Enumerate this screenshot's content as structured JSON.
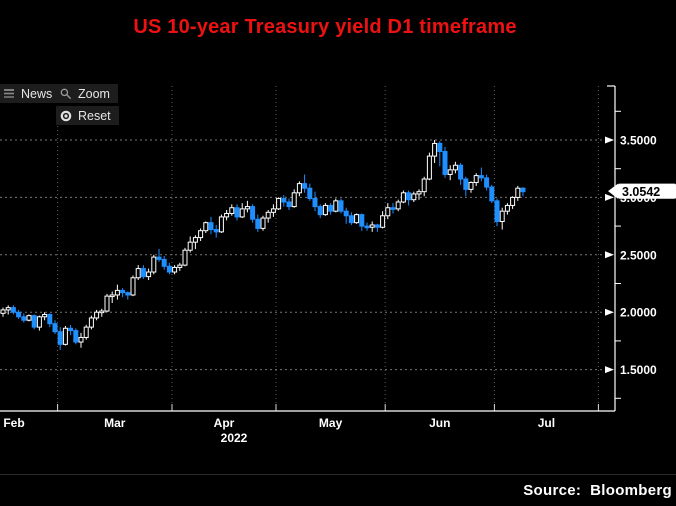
{
  "title": {
    "text": "US 10-year Treasury yield D1 timeframe",
    "color": "#ee1111"
  },
  "toolbar": {
    "buttons": [
      {
        "label": "News",
        "icon": "news-list-icon"
      },
      {
        "label": "Zoom",
        "icon": "magnifier-icon"
      },
      {
        "label": "Reset",
        "icon": "reset-target-icon"
      }
    ]
  },
  "source_label": "Source:  Bloomberg",
  "chart_data": {
    "type": "candlestick",
    "title": "US 10-year Treasury yield D1 timeframe",
    "instrument": "US 10-year Treasury yield",
    "timeframe": "D1",
    "x_axis": {
      "months": [
        "Feb",
        "Mar",
        "Apr",
        "May",
        "Jun",
        "Jul"
      ],
      "year": "2022"
    },
    "y_axis": {
      "major_ticks": [
        3.5,
        3.0,
        2.5,
        2.0,
        1.5
      ],
      "tick_labels": [
        "3.5000",
        "3.0000",
        "2.5000",
        "2.0000",
        "1.5000"
      ],
      "minor_ticks": [
        3.75,
        3.25,
        2.75,
        2.25,
        1.75,
        1.25
      ],
      "range": [
        1.14,
        3.97
      ],
      "grid": "dotted"
    },
    "last_price": 3.0542,
    "last_price_label": "3.0542",
    "legend_position": "none",
    "colors": {
      "up": "#ffffff",
      "down": "#1e8fff",
      "grid": "#787878",
      "vgrid": "#5e5e5e",
      "axis": "#ffffff",
      "background": "#000000",
      "tag_bg": "#ffffff",
      "tag_text": "#000000"
    },
    "month_start_indices": [
      0,
      11,
      33,
      53,
      74,
      95
    ],
    "candles": [
      [
        1.99,
        2.04,
        1.96,
        2.02
      ],
      [
        2.02,
        2.06,
        1.98,
        2.04
      ],
      [
        2.04,
        2.06,
        1.98,
        2.0
      ],
      [
        2.0,
        2.02,
        1.94,
        1.96
      ],
      [
        1.96,
        1.99,
        1.91,
        1.93
      ],
      [
        1.93,
        1.98,
        1.92,
        1.97
      ],
      [
        1.97,
        1.98,
        1.85,
        1.87
      ],
      [
        1.87,
        1.97,
        1.84,
        1.96
      ],
      [
        1.96,
        2.0,
        1.93,
        1.98
      ],
      [
        1.98,
        1.99,
        1.87,
        1.9
      ],
      [
        1.9,
        1.93,
        1.81,
        1.83
      ],
      [
        1.83,
        1.87,
        1.67,
        1.72
      ],
      [
        1.72,
        1.88,
        1.71,
        1.86
      ],
      [
        1.86,
        1.89,
        1.8,
        1.84
      ],
      [
        1.84,
        1.86,
        1.72,
        1.74
      ],
      [
        1.74,
        1.82,
        1.69,
        1.78
      ],
      [
        1.78,
        1.89,
        1.76,
        1.87
      ],
      [
        1.87,
        1.97,
        1.85,
        1.95
      ],
      [
        1.95,
        2.02,
        1.93,
        2.0
      ],
      [
        2.0,
        2.03,
        1.96,
        2.01
      ],
      [
        2.01,
        2.16,
        2.0,
        2.14
      ],
      [
        2.14,
        2.18,
        2.08,
        2.15
      ],
      [
        2.15,
        2.24,
        2.11,
        2.19
      ],
      [
        2.19,
        2.21,
        2.13,
        2.17
      ],
      [
        2.17,
        2.18,
        2.11,
        2.15
      ],
      [
        2.15,
        2.32,
        2.14,
        2.3
      ],
      [
        2.3,
        2.41,
        2.28,
        2.38
      ],
      [
        2.38,
        2.41,
        2.29,
        2.31
      ],
      [
        2.31,
        2.38,
        2.28,
        2.35
      ],
      [
        2.35,
        2.5,
        2.33,
        2.48
      ],
      [
        2.48,
        2.55,
        2.44,
        2.46
      ],
      [
        2.46,
        2.49,
        2.37,
        2.4
      ],
      [
        2.4,
        2.43,
        2.33,
        2.35
      ],
      [
        2.35,
        2.41,
        2.33,
        2.39
      ],
      [
        2.39,
        2.43,
        2.36,
        2.41
      ],
      [
        2.41,
        2.56,
        2.4,
        2.54
      ],
      [
        2.54,
        2.66,
        2.52,
        2.61
      ],
      [
        2.61,
        2.67,
        2.55,
        2.65
      ],
      [
        2.65,
        2.73,
        2.62,
        2.71
      ],
      [
        2.71,
        2.79,
        2.69,
        2.78
      ],
      [
        2.78,
        2.83,
        2.68,
        2.72
      ],
      [
        2.72,
        2.76,
        2.65,
        2.7
      ],
      [
        2.7,
        2.85,
        2.69,
        2.83
      ],
      [
        2.83,
        2.89,
        2.8,
        2.86
      ],
      [
        2.86,
        2.94,
        2.84,
        2.91
      ],
      [
        2.91,
        2.94,
        2.8,
        2.83
      ],
      [
        2.83,
        2.95,
        2.82,
        2.9
      ],
      [
        2.9,
        2.97,
        2.87,
        2.92
      ],
      [
        2.92,
        2.94,
        2.78,
        2.81
      ],
      [
        2.81,
        2.85,
        2.7,
        2.73
      ],
      [
        2.73,
        2.84,
        2.71,
        2.82
      ],
      [
        2.82,
        2.89,
        2.78,
        2.87
      ],
      [
        2.87,
        2.94,
        2.83,
        2.9
      ],
      [
        2.9,
        3.0,
        2.89,
        2.99
      ],
      [
        2.99,
        3.02,
        2.92,
        2.96
      ],
      [
        2.96,
        2.99,
        2.89,
        2.92
      ],
      [
        2.92,
        3.07,
        2.91,
        3.04
      ],
      [
        3.04,
        3.14,
        3.01,
        3.12
      ],
      [
        3.12,
        3.2,
        3.04,
        3.08
      ],
      [
        3.08,
        3.12,
        2.97,
        2.99
      ],
      [
        2.99,
        3.05,
        2.88,
        2.92
      ],
      [
        2.92,
        2.94,
        2.82,
        2.85
      ],
      [
        2.85,
        2.95,
        2.84,
        2.93
      ],
      [
        2.93,
        2.95,
        2.85,
        2.88
      ],
      [
        2.88,
        2.99,
        2.87,
        2.97
      ],
      [
        2.97,
        2.99,
        2.86,
        2.88
      ],
      [
        2.88,
        2.91,
        2.77,
        2.84
      ],
      [
        2.84,
        2.87,
        2.76,
        2.78
      ],
      [
        2.78,
        2.86,
        2.77,
        2.85
      ],
      [
        2.85,
        2.86,
        2.71,
        2.75
      ],
      [
        2.75,
        2.78,
        2.71,
        2.74
      ],
      [
        2.74,
        2.79,
        2.7,
        2.76
      ],
      [
        2.76,
        2.77,
        2.7,
        2.74
      ],
      [
        2.74,
        2.88,
        2.73,
        2.84
      ],
      [
        2.84,
        2.95,
        2.81,
        2.91
      ],
      [
        2.91,
        2.95,
        2.86,
        2.9
      ],
      [
        2.9,
        2.98,
        2.88,
        2.96
      ],
      [
        2.96,
        3.06,
        2.95,
        3.04
      ],
      [
        3.04,
        3.06,
        2.93,
        2.98
      ],
      [
        2.98,
        3.05,
        2.96,
        3.03
      ],
      [
        3.03,
        3.07,
        2.98,
        3.05
      ],
      [
        3.05,
        3.18,
        3.01,
        3.16
      ],
      [
        3.16,
        3.39,
        3.15,
        3.36
      ],
      [
        3.36,
        3.5,
        3.3,
        3.47
      ],
      [
        3.47,
        3.49,
        3.27,
        3.4
      ],
      [
        3.4,
        3.44,
        3.17,
        3.2
      ],
      [
        3.2,
        3.28,
        3.15,
        3.24
      ],
      [
        3.24,
        3.31,
        3.21,
        3.28
      ],
      [
        3.28,
        3.3,
        3.11,
        3.16
      ],
      [
        3.16,
        3.18,
        3.01,
        3.07
      ],
      [
        3.07,
        3.14,
        3.04,
        3.13
      ],
      [
        3.13,
        3.21,
        3.1,
        3.19
      ],
      [
        3.19,
        3.26,
        3.14,
        3.17
      ],
      [
        3.17,
        3.2,
        3.06,
        3.09
      ],
      [
        3.09,
        3.11,
        2.95,
        2.97
      ],
      [
        2.97,
        2.99,
        2.75,
        2.79
      ],
      [
        2.79,
        2.91,
        2.72,
        2.88
      ],
      [
        2.88,
        2.95,
        2.85,
        2.93
      ],
      [
        2.93,
        3.01,
        2.9,
        3.0
      ],
      [
        3.0,
        3.1,
        2.97,
        3.08
      ],
      [
        3.08,
        3.09,
        3.01,
        3.05
      ]
    ]
  }
}
